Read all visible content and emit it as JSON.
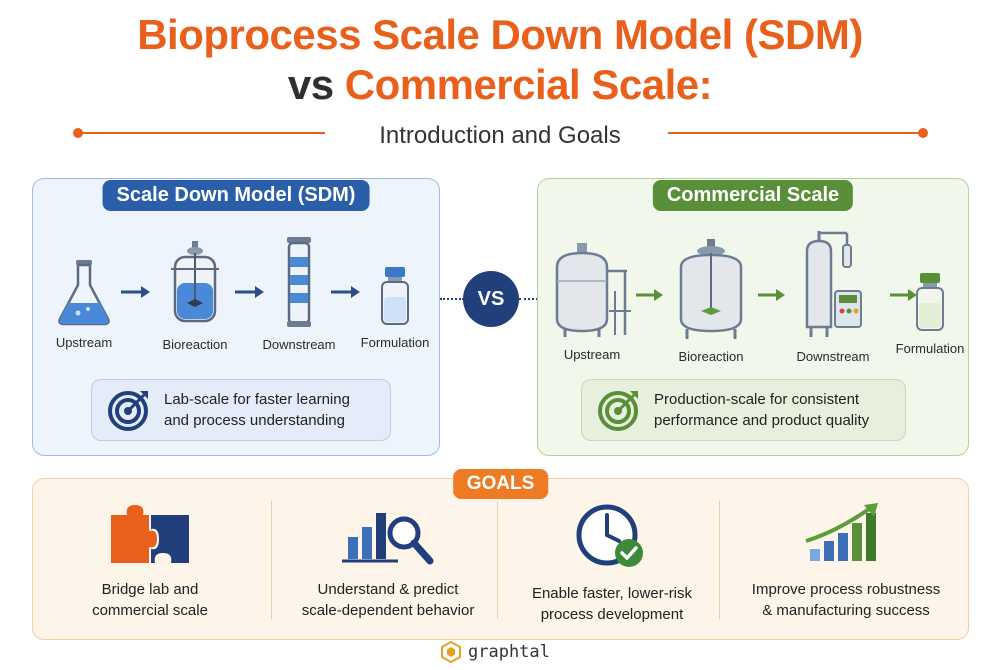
{
  "title": {
    "line1": "Bioprocess Scale Down Model (SDM)",
    "line2_prefix": "vs ",
    "line2_highlight": "Commercial Scale:"
  },
  "subtitle": "Introduction and Goals",
  "sdm": {
    "label": "Scale Down Model (SDM)",
    "steps": [
      "Upstream",
      "Bioreaction",
      "Downstream",
      "Formulation"
    ],
    "goal_line1": "Lab-scale for faster learning",
    "goal_line2": "and process understanding"
  },
  "vs": "VS",
  "commercial": {
    "label": "Commercial Scale",
    "steps": [
      "Upstream",
      "Bioreaction",
      "Downstream",
      "Formulation"
    ],
    "goal_line1": "Production-scale for consistent",
    "goal_line2": "performance and product quality"
  },
  "goals": {
    "label": "GOALS",
    "items": [
      {
        "line1": "Bridge lab and",
        "line2": "commercial scale",
        "icon": "puzzle-icon"
      },
      {
        "line1": "Understand & predict",
        "line2": "scale-dependent behavior",
        "icon": "chart-magnifier-icon"
      },
      {
        "line1": "Enable faster, lower-risk",
        "line2": "process development",
        "icon": "clock-check-icon"
      },
      {
        "line1": "Improve process robustness",
        "line2": "& manufacturing success",
        "icon": "growth-chart-icon"
      }
    ]
  },
  "brand": "graphtal",
  "colors": {
    "orange": "#e8601c",
    "sdm_blue": "#2b5ea8",
    "commercial_green": "#5a8f3a",
    "vs_navy": "#213f7a",
    "goals_orange": "#ee7a24"
  }
}
